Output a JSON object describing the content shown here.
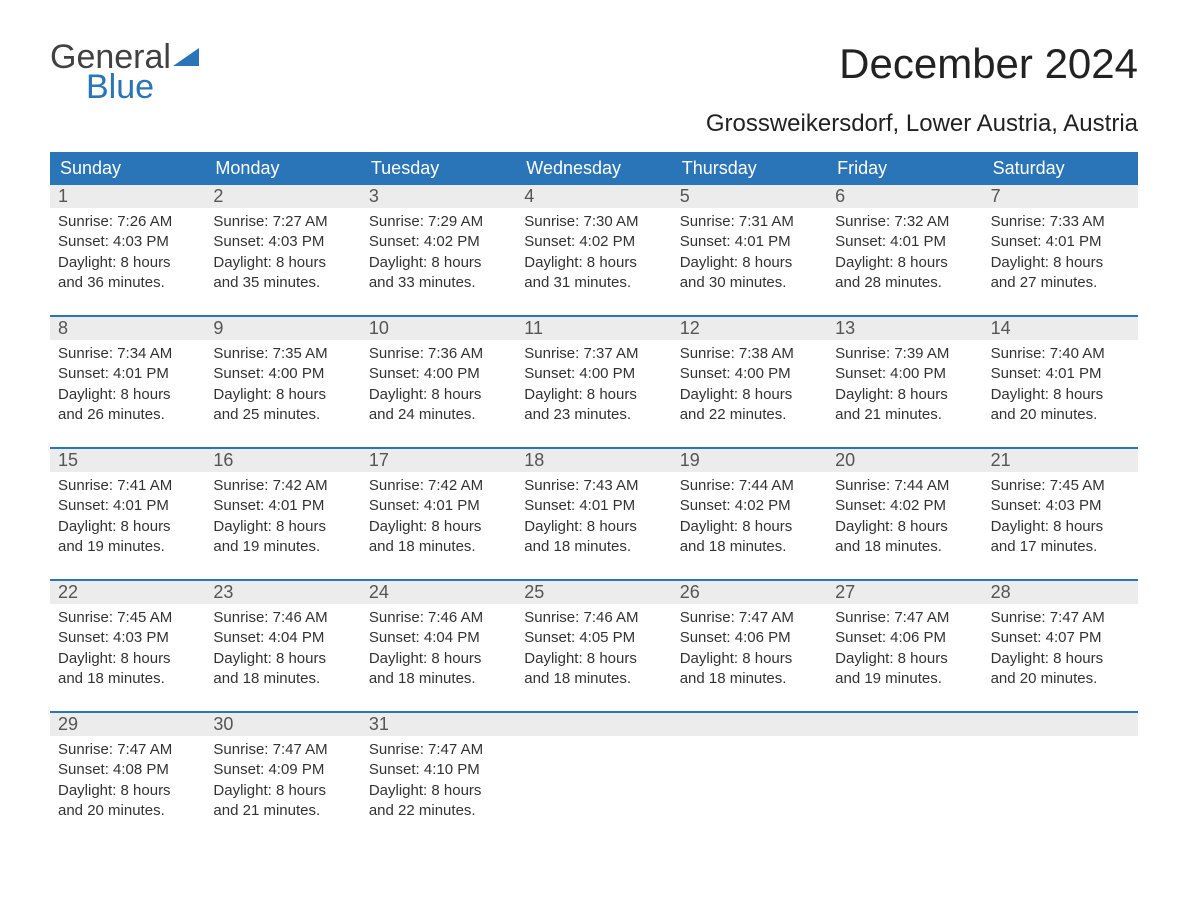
{
  "logo": {
    "text1": "General",
    "text2": "Blue"
  },
  "title": "December 2024",
  "subtitle": "Grossweikersdorf, Lower Austria, Austria",
  "colors": {
    "header_bg": "#2a74b8",
    "daynum_bg": "#ececec",
    "text": "#333333",
    "page_bg": "#ffffff"
  },
  "day_labels": [
    "Sunday",
    "Monday",
    "Tuesday",
    "Wednesday",
    "Thursday",
    "Friday",
    "Saturday"
  ],
  "weeks": [
    [
      {
        "n": "1",
        "sr": "7:26 AM",
        "ss": "4:03 PM",
        "dl": "8 hours",
        "dm": "and 36 minutes."
      },
      {
        "n": "2",
        "sr": "7:27 AM",
        "ss": "4:03 PM",
        "dl": "8 hours",
        "dm": "and 35 minutes."
      },
      {
        "n": "3",
        "sr": "7:29 AM",
        "ss": "4:02 PM",
        "dl": "8 hours",
        "dm": "and 33 minutes."
      },
      {
        "n": "4",
        "sr": "7:30 AM",
        "ss": "4:02 PM",
        "dl": "8 hours",
        "dm": "and 31 minutes."
      },
      {
        "n": "5",
        "sr": "7:31 AM",
        "ss": "4:01 PM",
        "dl": "8 hours",
        "dm": "and 30 minutes."
      },
      {
        "n": "6",
        "sr": "7:32 AM",
        "ss": "4:01 PM",
        "dl": "8 hours",
        "dm": "and 28 minutes."
      },
      {
        "n": "7",
        "sr": "7:33 AM",
        "ss": "4:01 PM",
        "dl": "8 hours",
        "dm": "and 27 minutes."
      }
    ],
    [
      {
        "n": "8",
        "sr": "7:34 AM",
        "ss": "4:01 PM",
        "dl": "8 hours",
        "dm": "and 26 minutes."
      },
      {
        "n": "9",
        "sr": "7:35 AM",
        "ss": "4:00 PM",
        "dl": "8 hours",
        "dm": "and 25 minutes."
      },
      {
        "n": "10",
        "sr": "7:36 AM",
        "ss": "4:00 PM",
        "dl": "8 hours",
        "dm": "and 24 minutes."
      },
      {
        "n": "11",
        "sr": "7:37 AM",
        "ss": "4:00 PM",
        "dl": "8 hours",
        "dm": "and 23 minutes."
      },
      {
        "n": "12",
        "sr": "7:38 AM",
        "ss": "4:00 PM",
        "dl": "8 hours",
        "dm": "and 22 minutes."
      },
      {
        "n": "13",
        "sr": "7:39 AM",
        "ss": "4:00 PM",
        "dl": "8 hours",
        "dm": "and 21 minutes."
      },
      {
        "n": "14",
        "sr": "7:40 AM",
        "ss": "4:01 PM",
        "dl": "8 hours",
        "dm": "and 20 minutes."
      }
    ],
    [
      {
        "n": "15",
        "sr": "7:41 AM",
        "ss": "4:01 PM",
        "dl": "8 hours",
        "dm": "and 19 minutes."
      },
      {
        "n": "16",
        "sr": "7:42 AM",
        "ss": "4:01 PM",
        "dl": "8 hours",
        "dm": "and 19 minutes."
      },
      {
        "n": "17",
        "sr": "7:42 AM",
        "ss": "4:01 PM",
        "dl": "8 hours",
        "dm": "and 18 minutes."
      },
      {
        "n": "18",
        "sr": "7:43 AM",
        "ss": "4:01 PM",
        "dl": "8 hours",
        "dm": "and 18 minutes."
      },
      {
        "n": "19",
        "sr": "7:44 AM",
        "ss": "4:02 PM",
        "dl": "8 hours",
        "dm": "and 18 minutes."
      },
      {
        "n": "20",
        "sr": "7:44 AM",
        "ss": "4:02 PM",
        "dl": "8 hours",
        "dm": "and 18 minutes."
      },
      {
        "n": "21",
        "sr": "7:45 AM",
        "ss": "4:03 PM",
        "dl": "8 hours",
        "dm": "and 17 minutes."
      }
    ],
    [
      {
        "n": "22",
        "sr": "7:45 AM",
        "ss": "4:03 PM",
        "dl": "8 hours",
        "dm": "and 18 minutes."
      },
      {
        "n": "23",
        "sr": "7:46 AM",
        "ss": "4:04 PM",
        "dl": "8 hours",
        "dm": "and 18 minutes."
      },
      {
        "n": "24",
        "sr": "7:46 AM",
        "ss": "4:04 PM",
        "dl": "8 hours",
        "dm": "and 18 minutes."
      },
      {
        "n": "25",
        "sr": "7:46 AM",
        "ss": "4:05 PM",
        "dl": "8 hours",
        "dm": "and 18 minutes."
      },
      {
        "n": "26",
        "sr": "7:47 AM",
        "ss": "4:06 PM",
        "dl": "8 hours",
        "dm": "and 18 minutes."
      },
      {
        "n": "27",
        "sr": "7:47 AM",
        "ss": "4:06 PM",
        "dl": "8 hours",
        "dm": "and 19 minutes."
      },
      {
        "n": "28",
        "sr": "7:47 AM",
        "ss": "4:07 PM",
        "dl": "8 hours",
        "dm": "and 20 minutes."
      }
    ],
    [
      {
        "n": "29",
        "sr": "7:47 AM",
        "ss": "4:08 PM",
        "dl": "8 hours",
        "dm": "and 20 minutes."
      },
      {
        "n": "30",
        "sr": "7:47 AM",
        "ss": "4:09 PM",
        "dl": "8 hours",
        "dm": "and 21 minutes."
      },
      {
        "n": "31",
        "sr": "7:47 AM",
        "ss": "4:10 PM",
        "dl": "8 hours",
        "dm": "and 22 minutes."
      },
      null,
      null,
      null,
      null
    ]
  ],
  "labels": {
    "sunrise": "Sunrise: ",
    "sunset": "Sunset: ",
    "daylight": "Daylight: "
  }
}
